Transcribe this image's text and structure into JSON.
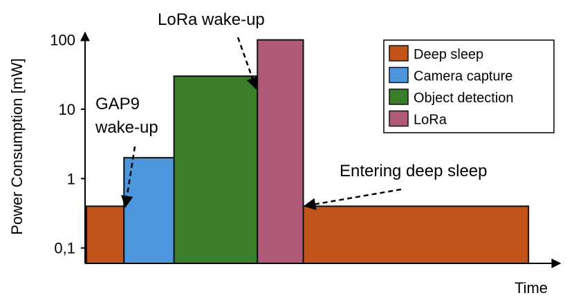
{
  "chart_data": {
    "type": "bar",
    "subtype": "step-timeline",
    "ylabel": "Power Consumption [mW]",
    "xlabel": "Time",
    "yscale": "log",
    "ylim": [
      0.06,
      150
    ],
    "yticks": [
      {
        "value": 0.1,
        "label": "0,1"
      },
      {
        "value": 1,
        "label": "1"
      },
      {
        "value": 10,
        "label": "10"
      },
      {
        "value": 100,
        "label": "100"
      }
    ],
    "segments": [
      {
        "name": "Deep sleep",
        "value": 0.4,
        "duration": 9
      },
      {
        "name": "Camera capture",
        "value": 2,
        "duration": 12
      },
      {
        "name": "Object detection",
        "value": 30,
        "duration": 20
      },
      {
        "name": "LoRa",
        "value": 100,
        "duration": 11
      },
      {
        "name": "Deep sleep",
        "value": 0.4,
        "duration": 54
      }
    ],
    "legend": {
      "position": "top-right",
      "entries": [
        {
          "label": "Deep sleep",
          "color": "#c0521a"
        },
        {
          "label": "Camera capture",
          "color": "#4e96dc"
        },
        {
          "label": "Object detection",
          "color": "#3a7d2a"
        },
        {
          "label": "LoRa",
          "color": "#b05a78"
        }
      ]
    },
    "annotations": [
      {
        "text_lines": [
          "GAP9",
          "wake-up"
        ],
        "points_to": "start of Camera capture"
      },
      {
        "text_lines": [
          "LoRa wake-up"
        ],
        "points_to": "start of LoRa"
      },
      {
        "text_lines": [
          "Entering deep sleep"
        ],
        "points_to": "end of LoRa"
      }
    ],
    "grid": false
  }
}
